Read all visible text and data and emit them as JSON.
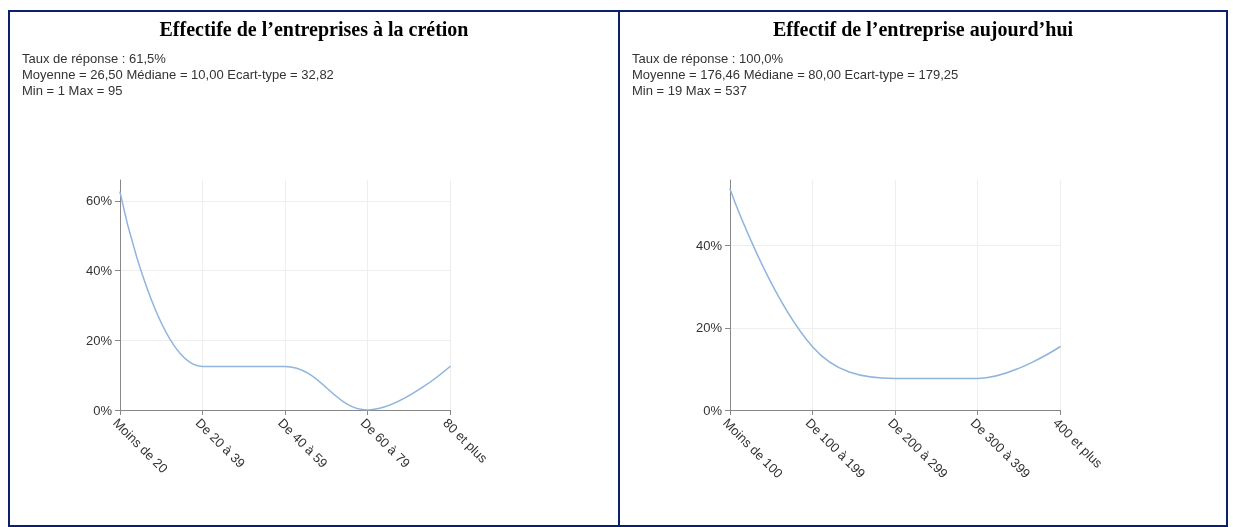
{
  "chart_data": [
    {
      "type": "line",
      "title": "Effectife de l’entreprises à la crétion",
      "annotations": [
        "Taux de réponse :  61,5%",
        "Moyenne =  26,50    Médiane =  10,00    Ecart-type = 32,82",
        "Min = 1    Max = 95"
      ],
      "categories": [
        "Moins de 20",
        "De 20 à 39",
        "De 40 à 59",
        "De 60 à 79",
        "80 et plus"
      ],
      "series": [
        {
          "color": "#8fb4dd",
          "values": [
            62.5,
            12.5,
            12.5,
            0,
            12.5
          ]
        }
      ],
      "ylim": [
        0,
        66
      ],
      "yticks": [
        {
          "value": 0,
          "label": "0%"
        },
        {
          "value": 20,
          "label": "20%"
        },
        {
          "value": 40,
          "label": "40%"
        },
        {
          "value": 60,
          "label": "60%"
        }
      ],
      "grid": true,
      "marker": "none",
      "line_style": "solid"
    },
    {
      "type": "line",
      "title": "Effectif de l’entreprise aujourd’hui",
      "annotations": [
        "Taux de réponse :  100,0%",
        "Moyenne =  176,46    Médiane =  80,00    Ecart-type = 179,25",
        "Min = 19    Max = 537"
      ],
      "categories": [
        "Moins de 100",
        "De 100 à 199",
        "De 200 à 299",
        "De 300 à 399",
        "400 et plus"
      ],
      "series": [
        {
          "color": "#8fb4dd",
          "values": [
            53.8,
            15.4,
            7.7,
            7.7,
            15.4
          ]
        }
      ],
      "ylim": [
        0,
        56
      ],
      "yticks": [
        {
          "value": 0,
          "label": "0%"
        },
        {
          "value": 20,
          "label": "20%"
        },
        {
          "value": 40,
          "label": "40%"
        }
      ],
      "grid": true,
      "marker": "none",
      "line_style": "solid"
    }
  ]
}
